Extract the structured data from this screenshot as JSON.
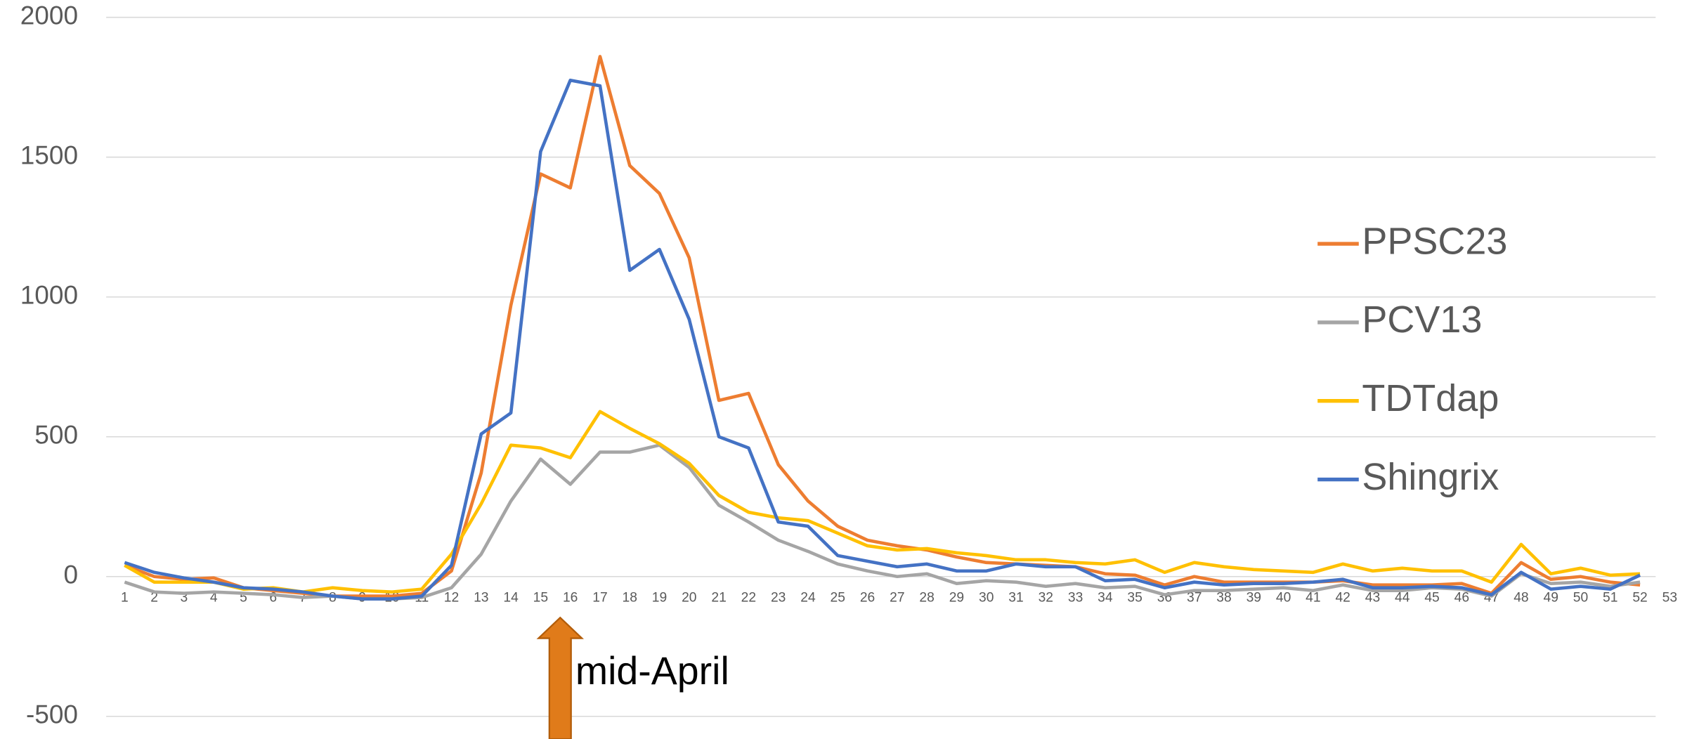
{
  "chart_data": {
    "type": "line",
    "annotation": "mid-April",
    "categories": [
      "1",
      "2",
      "3",
      "4",
      "5",
      "6",
      "7",
      "8",
      "9",
      "10",
      "11",
      "12",
      "13",
      "14",
      "15",
      "16",
      "17",
      "18",
      "19",
      "20",
      "21",
      "22",
      "23",
      "24",
      "25",
      "26",
      "27",
      "28",
      "29",
      "30",
      "31",
      "32",
      "33",
      "34",
      "35",
      "36",
      "37",
      "38",
      "39",
      "40",
      "41",
      "42",
      "43",
      "44",
      "45",
      "46",
      "47",
      "48",
      "49",
      "50",
      "51",
      "52",
      "53"
    ],
    "series": [
      {
        "name": "PPSC23",
        "color": "#ed7d31",
        "values": [
          40,
          0,
          -10,
          -5,
          -40,
          -50,
          -60,
          -70,
          -70,
          -70,
          -60,
          20,
          370,
          970,
          1440,
          1390,
          1860,
          1470,
          1370,
          1140,
          630,
          655,
          400,
          270,
          180,
          130,
          110,
          95,
          70,
          50,
          45,
          40,
          35,
          10,
          5,
          -30,
          0,
          -20,
          -20,
          -20,
          -20,
          -15,
          -30,
          -30,
          -30,
          -25,
          -60,
          50,
          -10,
          0,
          -20,
          -30,
          null
        ]
      },
      {
        "name": "PCV13",
        "color": "#a5a5a5",
        "values": [
          -20,
          -55,
          -60,
          -55,
          -60,
          -65,
          -75,
          -70,
          -80,
          -80,
          -75,
          -40,
          80,
          270,
          420,
          330,
          445,
          445,
          470,
          390,
          255,
          195,
          130,
          90,
          45,
          20,
          0,
          10,
          -25,
          -15,
          -20,
          -35,
          -25,
          -40,
          -35,
          -65,
          -50,
          -50,
          -45,
          -40,
          -50,
          -30,
          -50,
          -50,
          -40,
          -45,
          -70,
          10,
          -25,
          -20,
          -35,
          -20,
          null
        ]
      },
      {
        "name": "TDTdap",
        "color": "#ffc000",
        "values": [
          40,
          -20,
          -20,
          -20,
          -45,
          -40,
          -55,
          -40,
          -50,
          -55,
          -45,
          80,
          260,
          470,
          460,
          425,
          590,
          530,
          475,
          405,
          290,
          230,
          210,
          200,
          155,
          110,
          95,
          100,
          85,
          75,
          60,
          60,
          50,
          45,
          60,
          15,
          50,
          35,
          25,
          20,
          15,
          45,
          20,
          30,
          20,
          20,
          -20,
          115,
          10,
          30,
          5,
          10,
          null
        ]
      },
      {
        "name": "Shingrix",
        "color": "#4472c4",
        "values": [
          50,
          15,
          -5,
          -20,
          -40,
          -45,
          -55,
          -70,
          -80,
          -80,
          -70,
          40,
          510,
          585,
          1520,
          1775,
          1755,
          1095,
          1170,
          920,
          500,
          460,
          195,
          180,
          75,
          55,
          35,
          45,
          20,
          20,
          45,
          35,
          35,
          -15,
          -10,
          -40,
          -20,
          -30,
          -25,
          -25,
          -20,
          -10,
          -40,
          -40,
          -35,
          -40,
          -65,
          15,
          -45,
          -35,
          -45,
          5,
          null
        ]
      }
    ],
    "ylim": [
      -581,
      2062
    ],
    "yticks": [
      -500,
      0,
      500,
      1000,
      1500,
      2000
    ],
    "grid": true,
    "legend": "right"
  }
}
